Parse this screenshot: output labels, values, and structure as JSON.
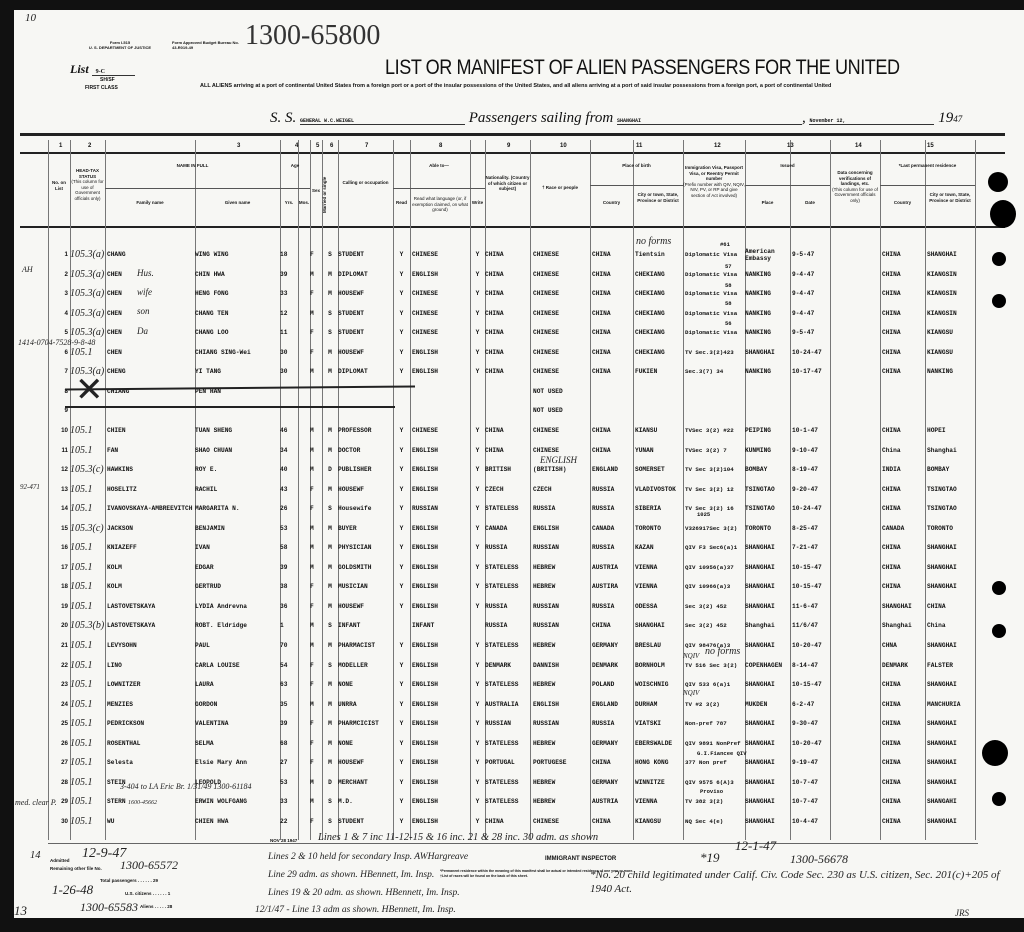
{
  "form": {
    "form_no": "Form I-515",
    "dept": "U. S. DEPARTMENT OF JUSTICE",
    "approval": "Form Approved Budget Bureau No. 43-R019-49",
    "file_number": "1300-65800",
    "list_label": "List",
    "list_value": "9-C",
    "sh_sf": "SH/SF",
    "class": "FIRST CLASS",
    "corner_mark": "10"
  },
  "title": "LIST OR MANIFEST OF ALIEN PASSENGERS FOR THE UNITED",
  "subtitle": "ALL ALIENS arriving at a port of continental United States from a foreign port or a port of the insular possessions of the United States, and all aliens arriving at a port of said insular possessions from a foreign port, a port of continental United",
  "voyage": {
    "ss_label": "S. S.",
    "ship": "GENERAL W.C.WEIGEL",
    "sailing_label": "Passengers sailing from",
    "port": "SHANGHAI",
    "date": "November 12,",
    "year_label": "19",
    "year_value": "47"
  },
  "column_numbers": [
    "1",
    "2",
    "3",
    "4",
    "5",
    "6",
    "7",
    "8",
    "9",
    "10",
    "11",
    "12",
    "13",
    "14",
    "15"
  ],
  "headers": {
    "no": "No. on List",
    "head_tax": "HEAD-TAX STATUS",
    "head_tax_note": "(This column for use of Government officials only)",
    "name": "NAME IN FULL",
    "family": "Family name",
    "given": "Given name",
    "age": "Age",
    "yrs": "Yrs.",
    "mos": "Mos.",
    "sex": "Sex",
    "married": "Married or single",
    "calling": "Calling or occupation",
    "able": "Able to—",
    "read": "Read",
    "language": "Read what language (or, if exemption claimed, on what ground)",
    "write": "Write",
    "nationality": "Nationality. (Country of which citizen or subject)",
    "race": "† Race or people",
    "birth": "Place of birth",
    "country": "Country",
    "city": "City or town, State, Province or District",
    "visa": "Immigration Visa, Passport Visa, or Reentry Permit number",
    "visa_note": "(Prefix number with QIV, NQIV, NIV, PV, or RP and give section of Act involved)",
    "issued": "Issued",
    "place": "Place",
    "date": "Date",
    "verif": "Data concerning verifications of landings, etc.",
    "verif_note": "(This column for use of Government officials only)",
    "residence": "*Last permanent residence",
    "res_country": "Country",
    "res_city": "City or town, State, Province or District"
  },
  "rows": [
    [
      "1",
      "105.3(a)",
      "CHANG",
      "WING WING",
      "18",
      "",
      "F",
      "S",
      "STUDENT",
      "Y",
      "CHINESE",
      "Y",
      "CHINA",
      "CHINESE",
      "CHINA",
      "Tientsin",
      "Diplomatic Visa",
      "American Embassy",
      "9-5-47",
      "CHINA",
      "SHANGHAI"
    ],
    [
      "2",
      "105.3(a)",
      "CHEN",
      "CHIN HWA",
      "39",
      "",
      "M",
      "M",
      "DIPLOMAT",
      "Y",
      "ENGLISH",
      "Y",
      "CHINA",
      "CHINESE",
      "CHINA",
      "CHEKIANG",
      "Diplomatic Visa",
      "NANKING",
      "9-4-47",
      "CHINA",
      "KIANGSIN"
    ],
    [
      "3",
      "105.3(a)",
      "CHEN",
      "HENG FONG",
      "33",
      "",
      "F",
      "M",
      "HOUSEWF",
      "Y",
      "CHINESE",
      "Y",
      "CHINA",
      "CHINESE",
      "CHINA",
      "CHEKIANG",
      "Diplomatic Visa",
      "NANKING",
      "9-4-47",
      "CHINA",
      "KIANGSIN"
    ],
    [
      "4",
      "105.3(a)",
      "CHEN",
      "CHANG TEN",
      "12",
      "",
      "M",
      "S",
      "STUDENT",
      "Y",
      "CHINESE",
      "Y",
      "CHINA",
      "CHINESE",
      "CHINA",
      "CHEKIANG",
      "Diplomatic Visa",
      "NANKING",
      "9-4-47",
      "CHINA",
      "KIANGSIN"
    ],
    [
      "5",
      "105.3(a)",
      "CHEN",
      "CHANG LOO",
      "11",
      "",
      "F",
      "S",
      "STUDENT",
      "Y",
      "CHINESE",
      "Y",
      "CHINA",
      "CHINESE",
      "CHINA",
      "CHEKIANG",
      "Diplomatic Visa",
      "NANKING",
      "9-5-47",
      "CHINA",
      "KIANGSU"
    ],
    [
      "6",
      "105.1",
      "CHEN",
      "CHIANG SING-Wei",
      "30",
      "",
      "F",
      "M",
      "HOUSEWF",
      "Y",
      "ENGLISH",
      "Y",
      "CHINA",
      "CHINESE",
      "CHINA",
      "CHEKIANG",
      "TV Sec.3(2)423",
      "SHANGHAI",
      "10-24-47",
      "CHINA",
      "KIANGSU"
    ],
    [
      "7",
      "105.3(a)",
      "CHENG",
      "YI TANG",
      "30",
      "",
      "M",
      "M",
      "DIPLOMAT",
      "Y",
      "ENGLISH",
      "Y",
      "CHINA",
      "CHINESE",
      "CHINA",
      "FUKIEN",
      "Sec.3(7) 34",
      "NANKING",
      "10-17-47",
      "CHINA",
      "NANKING"
    ],
    [
      "8",
      "",
      "CHIANG",
      "PEN HAN",
      "",
      "",
      "",
      "",
      "",
      "",
      "",
      "",
      "",
      "NOT USED",
      "",
      "",
      "",
      "",
      "",
      "",
      ""
    ],
    [
      "9",
      "",
      "",
      "",
      "",
      "",
      "",
      "",
      "",
      "",
      "",
      "",
      "",
      "NOT USED",
      "",
      "",
      "",
      "",
      "",
      "",
      ""
    ],
    [
      "10",
      "105.1",
      "CHIEN",
      "TUAN SHENG",
      "46",
      "",
      "M",
      "M",
      "PROFESSOR",
      "Y",
      "CHINESE",
      "Y",
      "CHINA",
      "CHINESE",
      "CHINA",
      "KIANSU",
      "TVSec 3(2) #22",
      "PEIPING",
      "10-1-47",
      "CHINA",
      "HOPEI"
    ],
    [
      "11",
      "105.1",
      "FAN",
      "SHAO CHUAN",
      "34",
      "",
      "M",
      "M",
      "DOCTOR",
      "Y",
      "ENGLISH",
      "Y",
      "CHINA",
      "CHINESE",
      "CHINA",
      "YUNAN",
      "TVSec 3(2) 7",
      "KUNMING",
      "9-10-47",
      "China",
      "Shanghai"
    ],
    [
      "12",
      "105.3(c)",
      "HAWKINS",
      "ROY E.",
      "40",
      "",
      "M",
      "D",
      "PUBLISHER",
      "Y",
      "ENGLISH",
      "Y",
      "BRITISH",
      "(BRITISH)",
      "ENGLAND",
      "SOMERSET",
      "TV Sec 3(2)104",
      "BOMBAY",
      "8-19-47",
      "INDIA",
      "BOMBAY"
    ],
    [
      "13",
      "105.1",
      "HOSELITZ",
      "RACHIL",
      "43",
      "",
      "F",
      "M",
      "HOUSEWF",
      "Y",
      "ENGLISH",
      "Y",
      "CZECH",
      "CZECH",
      "RUSSIA",
      "VLADIVOSTOK",
      "TV Sec 3(2) 12",
      "TSINGTAO",
      "9-20-47",
      "CHINA",
      "TSINGTAO"
    ],
    [
      "14",
      "105.1",
      "IVANOVSKAYA-AMBREEVITCH",
      "MARGARITA N.",
      "26",
      "",
      "F",
      "S",
      "Housewife",
      "Y",
      "RUSSIAN",
      "Y",
      "STATELESS",
      "RUSSIA",
      "RUSSIA",
      "SIBERIA",
      "TV Sec 3(2) 16",
      "TSINGTAO",
      "10-24-47",
      "CHINA",
      "TSINGTAO"
    ],
    [
      "15",
      "105.3(c)",
      "JACKSON",
      "BENJAMIN",
      "53",
      "",
      "M",
      "M",
      "BUYER",
      "Y",
      "ENGLISH",
      "Y",
      "CANADA",
      "ENGLISH",
      "CANADA",
      "TORONTO",
      "V326917Sec 3(2)",
      "TORONTO",
      "8-25-47",
      "CANADA",
      "TORONTO"
    ],
    [
      "16",
      "105.1",
      "KNIAZEFF",
      "IVAN",
      "58",
      "",
      "M",
      "M",
      "PHYSICIAN",
      "Y",
      "ENGLISH",
      "Y",
      "RUSSIA",
      "RUSSIAN",
      "RUSSIA",
      "KAZAN",
      "QIV F3 Sec6(a)1",
      "SHANGHAI",
      "7-21-47",
      "CHINA",
      "SHANGHAI"
    ],
    [
      "17",
      "105.1",
      "KOLM",
      "EDGAR",
      "39",
      "",
      "M",
      "M",
      "GOLDSMITH",
      "Y",
      "ENGLISH",
      "Y",
      "STATELESS",
      "HEBREW",
      "AUSTRIA",
      "VIENNA",
      "QIV 10956(a)37",
      "SHANGHAI",
      "10-15-47",
      "CHINA",
      "SHANGHAI"
    ],
    [
      "18",
      "105.1",
      "KOLM",
      "GERTRUD",
      "38",
      "",
      "F",
      "M",
      "MUSICIAN",
      "Y",
      "ENGLISH",
      "Y",
      "STATELESS",
      "HEBREW",
      "AUSTIRA",
      "VIENNA",
      "QIV 10966(a)3",
      "SHANGHAI",
      "10-15-47",
      "CHINA",
      "SHANGHAI"
    ],
    [
      "19",
      "105.1",
      "LASTOVETSKAYA",
      "LYDIA Andrevna",
      "36",
      "",
      "F",
      "M",
      "HOUSEWF",
      "Y",
      "ENGLISH",
      "Y",
      "RUSSIA",
      "RUSSIAN",
      "RUSSIA",
      "ODESSA",
      "Sec 3(2) 452",
      "SHANGHAI",
      "11-6-47",
      "SHANGHAI",
      "CHINA"
    ],
    [
      "20",
      "105.3(b)",
      "LASTOVETSKAYA",
      "ROBT. Eldridge",
      "1",
      "",
      "M",
      "S",
      "INFANT",
      "",
      "INFANT",
      "",
      "RUSSIA",
      "RUSSIAN",
      "CHINA",
      "SHANGHAI",
      "Sec 3(2) 452",
      "Shanghai",
      "11/6/47",
      "Shanghai",
      "China"
    ],
    [
      "21",
      "105.1",
      "LEVYSOHN",
      "PAUL",
      "70",
      "",
      "M",
      "M",
      "PHARMACIST",
      "Y",
      "ENGLISH",
      "Y",
      "STATELESS",
      "HEBREW",
      "GERMANY",
      "BRESLAU",
      "QIV 98476(a)3",
      "SHANGHAI",
      "10-20-47",
      "CHNA",
      "SHANGHAI"
    ],
    [
      "22",
      "105.1",
      "LINO",
      "CARLA LOUISE",
      "54",
      "",
      "F",
      "S",
      "MODELLER",
      "Y",
      "ENGLISH",
      "Y",
      "DENMARK",
      "DANNISH",
      "DENMARK",
      "BORNHOLM",
      "TV 516 Sec 3(2)",
      "COPENHAGEN",
      "8-14-47",
      "DENMARK",
      "FALSTER"
    ],
    [
      "23",
      "105.1",
      "LOWNITZER",
      "LAURA",
      "63",
      "",
      "F",
      "M",
      "NONE",
      "Y",
      "ENGLISH",
      "Y",
      "STATELESS",
      "HEBREW",
      "POLAND",
      "WOISCHNIG",
      "QIV 533 6(a)1",
      "SHANGHAI",
      "10-15-47",
      "CHINA",
      "SHANGHAI"
    ],
    [
      "24",
      "105.1",
      "MENZIES",
      "GORDON",
      "35",
      "",
      "M",
      "M",
      "UNRRA",
      "Y",
      "ENGLISH",
      "Y",
      "AUSTRALIA",
      "ENGLISH",
      "ENGLAND",
      "DURHAM",
      "TV #2 3(2)",
      "MUKDEN",
      "6-2-47",
      "CHINA",
      "MANCHURIA"
    ],
    [
      "25",
      "105.1",
      "PEDRICKSON",
      "VALENTINA",
      "39",
      "",
      "F",
      "M",
      "PHARMCICIST",
      "Y",
      "ENGLISH",
      "Y",
      "RUSSIAN",
      "RUSSIAN",
      "RUSSIA",
      "VIATSKI",
      "Non-pref 787",
      "SHANGHAI",
      "9-30-47",
      "CHINA",
      "SHANGHAI"
    ],
    [
      "26",
      "105.1",
      "ROSENTHAL",
      "SELMA",
      "68",
      "",
      "F",
      "M",
      "NONE",
      "Y",
      "ENGLISH",
      "Y",
      "STATELESS",
      "HEBREW",
      "GERMANY",
      "EBERSWALDE",
      "QIV 9891 NonPref",
      "SHANGHAI",
      "10-20-47",
      "CHINA",
      "SHANGHAI"
    ],
    [
      "27",
      "105.1",
      "Selesta",
      "Elsie Mary Ann",
      "27",
      "",
      "F",
      "M",
      "HOUSEWF",
      "Y",
      "ENGLISH",
      "Y",
      "PORTUGAL",
      "PORTUGESE",
      "CHINA",
      "HONG KONG",
      "377 Non pref",
      "SHANGHAI",
      "9-19-47",
      "CHINA",
      "SHANGHAI"
    ],
    [
      "28",
      "105.1",
      "STEIN",
      "LEOPOLD",
      "53",
      "",
      "M",
      "D",
      "MERCHANT",
      "Y",
      "ENGLISH",
      "Y",
      "STATELESS",
      "HEBREW",
      "GERMANY",
      "WINNITZE",
      "QIV 9575 6(A)3",
      "SHANGHAI",
      "10-7-47",
      "CHINA",
      "SHANGHAI"
    ],
    [
      "29",
      "105.1",
      "STERN",
      "ERWIN WOLFGANG",
      "33",
      "",
      "M",
      "S",
      "M.D.",
      "Y",
      "ENGLISH",
      "Y",
      "STATELESS",
      "HEBREW",
      "AUSTRIA",
      "VIENNA",
      "TV 382 3(2)",
      "SHANGHAI",
      "10-7-47",
      "CHINA",
      "SHANGAHI"
    ],
    [
      "30",
      "105.1",
      "WU",
      "CHIEN HWA",
      "22",
      "",
      "F",
      "S",
      "STUDENT",
      "Y",
      "ENGLISH",
      "Y",
      "CHINA",
      "CHINESE",
      "CHINA",
      "KIANGSU",
      "NQ Sec 4(e)",
      "SHANGHAI",
      "10-4-47",
      "CHINA",
      "SHANGHAI"
    ]
  ],
  "annotations": {
    "no_forms_1": "no forms",
    "visa_61": "#61",
    "visa_57": "57",
    "visa_58a": "58",
    "visa_58b": "58",
    "visa_56": "56",
    "visa_1025": "1025",
    "fiancee": "G.I.Fiancee QIV",
    "proviso": "Proviso",
    "english": "ENGLISH",
    "husband": "Hus.",
    "wife": "wife",
    "son": "son",
    "dau": "Da",
    "file_line6": "1414-0704-7528-9-8-48",
    "no_forms_22": "no forms",
    "nqiv_22": "NQIV",
    "nqiv_24": "NQIV",
    "stern_note": "1600-45662",
    "stein_note": "3-404 to LA  Eric  Br. 1/31/49  1300-61184",
    "margin_ah": "AH",
    "margin_7": "92-471",
    "med_clear": "med. clear P."
  },
  "footer": {
    "date_stamp": "NOV 28 1947",
    "line1": "Lines 1 & 7 inc 11-12-15 & 16 inc. 21 & 28 inc. 30 adm. as shown",
    "line2": "Lines 2 & 10 held for secondary Insp. AWHargreave",
    "inspector_label": "IMMIGRANT INSPECTOR",
    "line3": "Line 29 adm. as shown. HBennett, Im. Insp.",
    "line4": "Lines 19 & 20 adm. as shown. HBennett, Im. Insp.",
    "line5": "12/1/47 - Line 13 adm as shown. HBennett, Im. Insp.",
    "admitted_label": "Admitted",
    "remaining_label": "Remaining other file No.",
    "admitted1": "12-9-47",
    "file1": "1300-65572",
    "total_label": "Total passengers",
    "total": "29",
    "citizens_label": "U.S. citizens",
    "citizens": "1",
    "aliens_label": "Aliens",
    "aliens": "28",
    "admitted2": "1-26-48",
    "file2": "1300-65583",
    "admitted3": "12-1-47",
    "file3": "1300-56678",
    "mark_14": "14",
    "mark_13": "13",
    "mark_19": "*19",
    "note_permanent": "*Permanent residence within the meaning of this manifest shall be actual or intended residence of one year or more.",
    "note_race": "†List of races will be found on the back of this sheet.",
    "child_note": "*No. 20 child legitimated under Calif. Civ. Code Sec. 230 as U.S. citizen, Sec. 201(c)+205 of 1940 Act.",
    "initials": "JRS"
  }
}
